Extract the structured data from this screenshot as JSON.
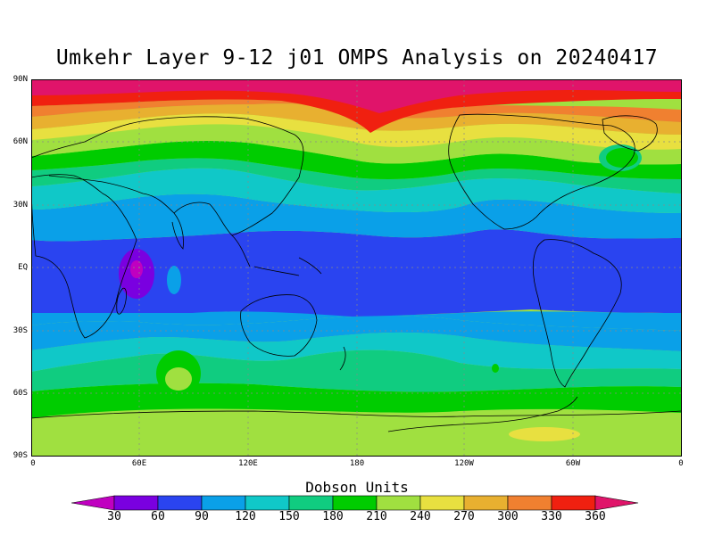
{
  "title": "Umkehr Layer 9-12 j01 OMPS Analysis on 20240417",
  "lat_labels": [
    "90N",
    "60N",
    "30N",
    "EQ",
    "30S",
    "60S",
    "90S"
  ],
  "lon_labels": [
    "0",
    "60E",
    "120E",
    "180",
    "120W",
    "60W",
    "0"
  ],
  "colorbar": {
    "title": "Dobson Units",
    "labels": [
      "30",
      "60",
      "90",
      "120",
      "150",
      "180",
      "210",
      "240",
      "270",
      "300",
      "330",
      "360"
    ],
    "colors": [
      "#c000c0",
      "#7a00e0",
      "#2a44f0",
      "#0aa0e8",
      "#10c8c8",
      "#10cc80",
      "#00cc00",
      "#a0e040",
      "#e8e040",
      "#e8b030",
      "#f08030",
      "#f02010",
      "#e0146a"
    ]
  }
}
